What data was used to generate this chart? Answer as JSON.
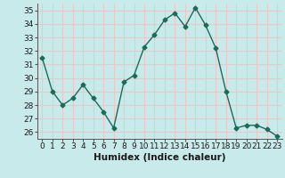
{
  "x": [
    0,
    1,
    2,
    3,
    4,
    5,
    6,
    7,
    8,
    9,
    10,
    11,
    12,
    13,
    14,
    15,
    16,
    17,
    18,
    19,
    20,
    21,
    22,
    23
  ],
  "y": [
    31.5,
    29.0,
    28.0,
    28.5,
    29.5,
    28.5,
    27.5,
    26.3,
    29.7,
    30.2,
    32.3,
    33.2,
    34.3,
    34.8,
    33.8,
    35.2,
    33.9,
    32.2,
    29.0,
    26.3,
    26.5,
    26.5,
    26.2,
    25.7
  ],
  "line_color": "#1a6b5a",
  "marker": "D",
  "marker_size": 2.5,
  "background_color": "#c8eaea",
  "grid_color": "#e8c8c8",
  "xlabel": "Humidex (Indice chaleur)",
  "ylim": [
    25.5,
    35.5
  ],
  "xlim": [
    -0.5,
    23.5
  ],
  "yticks": [
    26,
    27,
    28,
    29,
    30,
    31,
    32,
    33,
    34,
    35
  ],
  "xticks": [
    0,
    1,
    2,
    3,
    4,
    5,
    6,
    7,
    8,
    9,
    10,
    11,
    12,
    13,
    14,
    15,
    16,
    17,
    18,
    19,
    20,
    21,
    22,
    23
  ],
  "tick_fontsize": 6.5,
  "label_fontsize": 7.5,
  "line_width": 1.0
}
